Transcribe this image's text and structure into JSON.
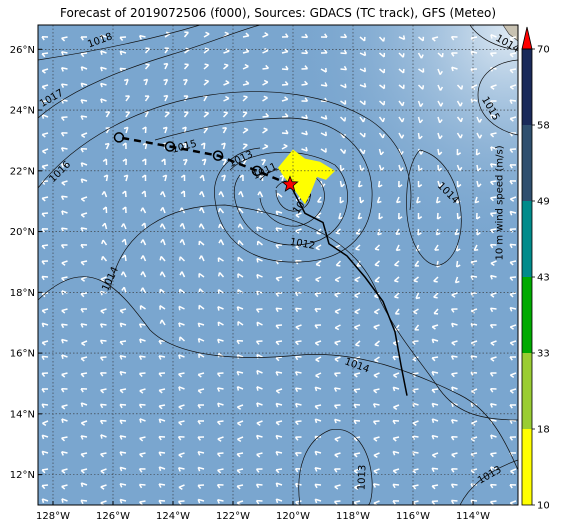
{
  "title": "Forecast of 2019072506 (f000), Sources: GDACS (TC track), GFS (Meteo)",
  "map": {
    "lon_range": [
      -128.5,
      -112.5
    ],
    "lat_range": [
      11,
      26.8
    ],
    "lon_ticks": [
      {
        "value": -128,
        "label": "128°W"
      },
      {
        "value": -126,
        "label": "126°W"
      },
      {
        "value": -124,
        "label": "124°W"
      },
      {
        "value": -122,
        "label": "122°W"
      },
      {
        "value": -120,
        "label": "120°W"
      },
      {
        "value": -118,
        "label": "118°W"
      },
      {
        "value": -116,
        "label": "116°W"
      },
      {
        "value": -114,
        "label": "114°W"
      }
    ],
    "lat_ticks": [
      {
        "value": 12,
        "label": "12°N"
      },
      {
        "value": 14,
        "label": "14°N"
      },
      {
        "value": 16,
        "label": "16°N"
      },
      {
        "value": 18,
        "label": "18°N"
      },
      {
        "value": 20,
        "label": "20°N"
      },
      {
        "value": 22,
        "label": "22°N"
      },
      {
        "value": 24,
        "label": "24°N"
      },
      {
        "value": 26,
        "label": "26°N"
      }
    ],
    "grid": true,
    "background_color": "#7aa6cf",
    "land_color": "#c8c2b2",
    "storm_center": {
      "lon": -120.1,
      "lat": 21.55
    },
    "past_track": [
      {
        "lon": -116.2,
        "lat": 14.6
      },
      {
        "lon": -116.4,
        "lat": 15.6
      },
      {
        "lon": -116.6,
        "lat": 16.7
      },
      {
        "lon": -117.0,
        "lat": 17.7
      },
      {
        "lon": -117.6,
        "lat": 18.5
      },
      {
        "lon": -118.2,
        "lat": 19.2
      },
      {
        "lon": -118.8,
        "lat": 19.6
      },
      {
        "lon": -119.0,
        "lat": 20.3
      },
      {
        "lon": -119.6,
        "lat": 20.6
      },
      {
        "lon": -120.1,
        "lat": 21.55
      }
    ],
    "forecast_track": [
      {
        "lon": -120.1,
        "lat": 21.55
      },
      {
        "lon": -121.2,
        "lat": 22.0
      },
      {
        "lon": -122.5,
        "lat": 22.5
      },
      {
        "lon": -124.1,
        "lat": 22.8
      },
      {
        "lon": -125.8,
        "lat": 23.1
      }
    ],
    "forecast_points": [
      {
        "lon": -121.2,
        "lat": 22.0
      },
      {
        "lon": -122.5,
        "lat": 22.5
      },
      {
        "lon": -124.1,
        "lat": 22.8
      },
      {
        "lon": -125.8,
        "lat": 23.1
      }
    ],
    "wind_area": [
      {
        "lon": -120.5,
        "lat": 22.1
      },
      {
        "lon": -120.0,
        "lat": 22.7
      },
      {
        "lon": -119.6,
        "lat": 22.4
      },
      {
        "lon": -119.1,
        "lat": 22.3
      },
      {
        "lon": -118.6,
        "lat": 22.0
      },
      {
        "lon": -118.9,
        "lat": 21.7
      },
      {
        "lon": -119.2,
        "lat": 21.8
      },
      {
        "lon": -119.4,
        "lat": 21.3
      },
      {
        "lon": -119.6,
        "lat": 20.9
      },
      {
        "lon": -119.9,
        "lat": 21.3
      },
      {
        "lon": -120.3,
        "lat": 21.8
      }
    ],
    "isobar_labels": [
      {
        "text": "1018",
        "lon": -126.4,
        "lat": 26.2,
        "angle": -20
      },
      {
        "text": "1017",
        "lon": -128.0,
        "lat": 24.3,
        "angle": -30
      },
      {
        "text": "1016",
        "lon": -127.7,
        "lat": 21.9,
        "angle": -45
      },
      {
        "text": "1015",
        "lon": -123.6,
        "lat": 22.7,
        "angle": -15
      },
      {
        "text": "1013",
        "lon": -121.7,
        "lat": 22.3,
        "angle": -25
      },
      {
        "text": "1011",
        "lon": -120.9,
        "lat": 21.9,
        "angle": -25
      },
      {
        "text": "1010",
        "lon": -119.6,
        "lat": 20.9,
        "angle": -55
      },
      {
        "text": "1012",
        "lon": -119.7,
        "lat": 19.5,
        "angle": 10
      },
      {
        "text": "1014",
        "lon": -126.0,
        "lat": 18.4,
        "angle": -65
      },
      {
        "text": "1014",
        "lon": -117.9,
        "lat": 15.5,
        "angle": 20
      },
      {
        "text": "1013",
        "lon": -117.6,
        "lat": 11.9,
        "angle": -88
      },
      {
        "text": "1013",
        "lon": -113.4,
        "lat": 11.9,
        "angle": -30
      },
      {
        "text": "1014",
        "lon": -114.9,
        "lat": 21.2,
        "angle": 45
      },
      {
        "text": "1015",
        "lon": -113.5,
        "lat": 24.0,
        "angle": 60
      },
      {
        "text": "1014",
        "lon": -112.9,
        "lat": 26.1,
        "angle": 30
      }
    ]
  },
  "colorbar": {
    "title": "10 m wind speed (m/s)",
    "ticks": [
      "10",
      "18",
      "33",
      "43",
      "49",
      "58",
      "70"
    ],
    "colors": [
      "#ffff00",
      "#9acd32",
      "#00aa00",
      "#008b8b",
      "#2f4f6f",
      "#1a2a5a"
    ],
    "extend_color": "#ff0000"
  }
}
